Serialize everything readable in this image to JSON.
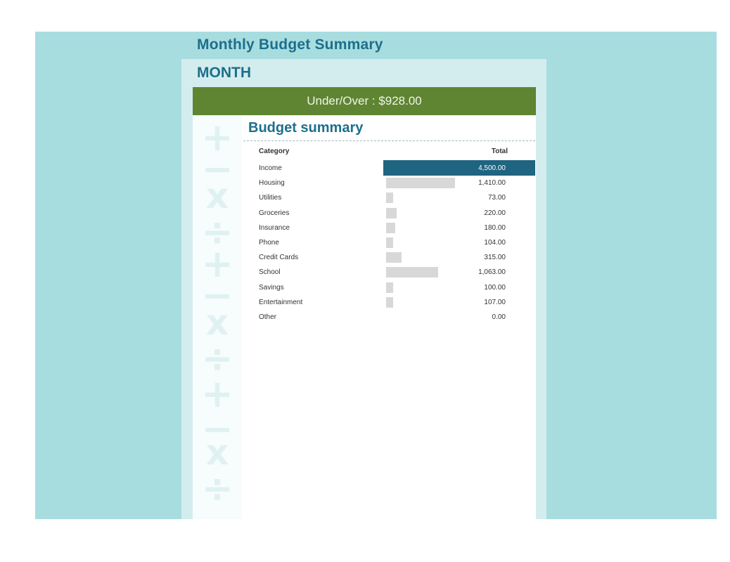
{
  "page": {
    "title": "Monthly Budget Summary",
    "month_label": "MONTH",
    "under_over": "Under/Over : $928.00"
  },
  "summary": {
    "title": "Budget summary",
    "headers": {
      "category": "Category",
      "total": "Total"
    },
    "max_value": 4500,
    "rows": [
      {
        "category": "Income",
        "total": "4,500.00",
        "value": 4500
      },
      {
        "category": "Housing",
        "total": "1,410.00",
        "value": 1410
      },
      {
        "category": "Utilities",
        "total": "73.00",
        "value": 73
      },
      {
        "category": "Groceries",
        "total": "220.00",
        "value": 220
      },
      {
        "category": "Insurance",
        "total": "180.00",
        "value": 180
      },
      {
        "category": "Phone",
        "total": "104.00",
        "value": 104
      },
      {
        "category": "Credit Cards",
        "total": "315.00",
        "value": 315
      },
      {
        "category": "School",
        "total": "1,063.00",
        "value": 1063
      },
      {
        "category": "Savings",
        "total": "100.00",
        "value": 100
      },
      {
        "category": "Entertainment",
        "total": "107.00",
        "value": 107
      },
      {
        "category": "Other",
        "total": "0.00",
        "value": 0
      }
    ]
  },
  "decorations": {
    "symbols": [
      "+",
      "−",
      "x",
      "÷",
      "+",
      "−",
      "x",
      "÷",
      "+",
      "−",
      "x",
      "÷"
    ]
  },
  "colors": {
    "background": "#a8dde0",
    "panel": "#d3edef",
    "accent_green": "#5f8533",
    "title_blue": "#1d6f8c",
    "income_bar": "#1f6480",
    "bar_gray": "#d8d8d8"
  }
}
